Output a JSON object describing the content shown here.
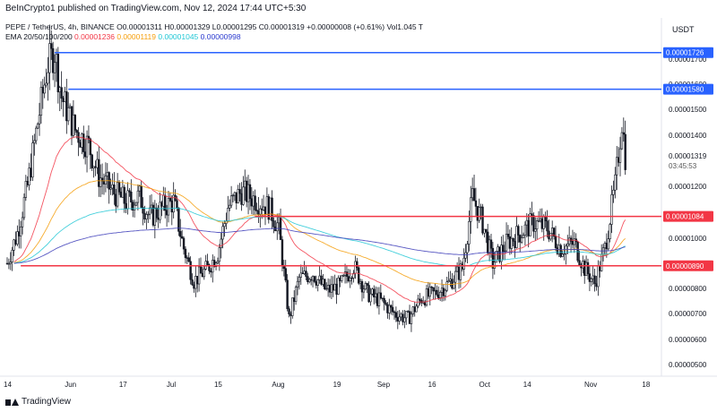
{
  "header": {
    "publisher_text": "BeInCrypto1 published on TradingView.com, Nov 12, 2024 17:44 UTC+5:30"
  },
  "legend": {
    "line1": "PEPE / TetherUS, 4h, BINANCE  O0.00001311 H0.00001329 L0.00001295 C0.00001319 +0.00000008 (+0.61%) Vol1.045 T",
    "ema_label": "EMA 20/50/100/200",
    "ema20": "0.00001236",
    "ema50": "0.00001119",
    "ema100": "0.00001045",
    "ema200": "0.00000998"
  },
  "axis": {
    "currency": "USDT"
  },
  "footer": {
    "brand": "TradingView"
  },
  "colors": {
    "up": "#26a69a",
    "candle": "#131722",
    "ema20": "#f23645",
    "ema50": "#f59e0b",
    "ema100": "#22c7d5",
    "ema200": "#3b3bb8",
    "resistance": "#2962ff",
    "support": "#f23645",
    "price_tag": "#131722"
  },
  "chart_data": {
    "type": "candlestick",
    "symbol": "PEPE / TetherUS",
    "timeframe": "4h",
    "exchange": "BINANCE",
    "y_ticks": [
      "0.00001700",
      "0.00001600",
      "0.00001500",
      "0.00001400",
      "0.00001200",
      "0.00001000",
      "0.00000800",
      "0.00000700",
      "0.00000600",
      "0.00000500"
    ],
    "x_ticks": [
      "14",
      "Jun",
      "17",
      "Jul",
      "15",
      "Aug",
      "19",
      "Sep",
      "16",
      "Oct",
      "14",
      "Nov",
      "18"
    ],
    "levels": [
      {
        "value": "0.00001726",
        "kind": "resistance"
      },
      {
        "value": "0.00001580",
        "kind": "resistance"
      },
      {
        "value": "0.00001084",
        "kind": "support"
      },
      {
        "value": "0.00000890",
        "kind": "support"
      }
    ],
    "last_price": "0.00001319",
    "countdown": "03:45:53",
    "price_path": [
      [
        "May 14",
        9.0
      ],
      [
        "May 17",
        10.2
      ],
      [
        "May 20",
        12.0
      ],
      [
        "May 23",
        14.5
      ],
      [
        "May 26",
        16.8
      ],
      [
        "May 28",
        17.3
      ],
      [
        "May 30",
        15.5
      ],
      [
        "Jun 3",
        14.2
      ],
      [
        "Jun 7",
        13.6
      ],
      [
        "Jun 10",
        12.4
      ],
      [
        "Jun 14",
        11.8
      ],
      [
        "Jun 18",
        11.4
      ],
      [
        "Jun 22",
        11.6
      ],
      [
        "Jun 25",
        10.8
      ],
      [
        "Jun 29",
        11.2
      ],
      [
        "Jul 2",
        11.4
      ],
      [
        "Jul 5",
        9.6
      ],
      [
        "Jul 8",
        8.3
      ],
      [
        "Jul 12",
        8.8
      ],
      [
        "Jul 15",
        9.4
      ],
      [
        "Jul 18",
        11.2
      ],
      [
        "Jul 22",
        11.8
      ],
      [
        "Jul 26",
        11.5
      ],
      [
        "Jul 30",
        11.2
      ],
      [
        "Aug 2",
        10.4
      ],
      [
        "Aug 5",
        6.8
      ],
      [
        "Aug 8",
        8.4
      ],
      [
        "Aug 12",
        8.6
      ],
      [
        "Aug 16",
        7.9
      ],
      [
        "Aug 20",
        8.1
      ],
      [
        "Aug 24",
        8.9
      ],
      [
        "Aug 28",
        7.8
      ],
      [
        "Sep 1",
        7.5
      ],
      [
        "Sep 5",
        7.0
      ],
      [
        "Sep 9",
        6.8
      ],
      [
        "Sep 13",
        7.6
      ],
      [
        "Sep 17",
        7.8
      ],
      [
        "Sep 21",
        8.2
      ],
      [
        "Sep 25",
        8.8
      ],
      [
        "Sep 28",
        11.6
      ],
      [
        "Oct 1",
        10.6
      ],
      [
        "Oct 4",
        9.0
      ],
      [
        "Oct 8",
        9.8
      ],
      [
        "Oct 12",
        10.2
      ],
      [
        "Oct 16",
        10.6
      ],
      [
        "Oct 20",
        10.4
      ],
      [
        "Oct 24",
        9.6
      ],
      [
        "Oct 28",
        9.8
      ],
      [
        "Oct 31",
        8.8
      ],
      [
        "Nov 3",
        8.2
      ],
      [
        "Nov 6",
        9.6
      ],
      [
        "Nov 9",
        12.0
      ],
      [
        "Nov 11",
        14.6
      ],
      [
        "Nov 12",
        13.2
      ]
    ]
  }
}
